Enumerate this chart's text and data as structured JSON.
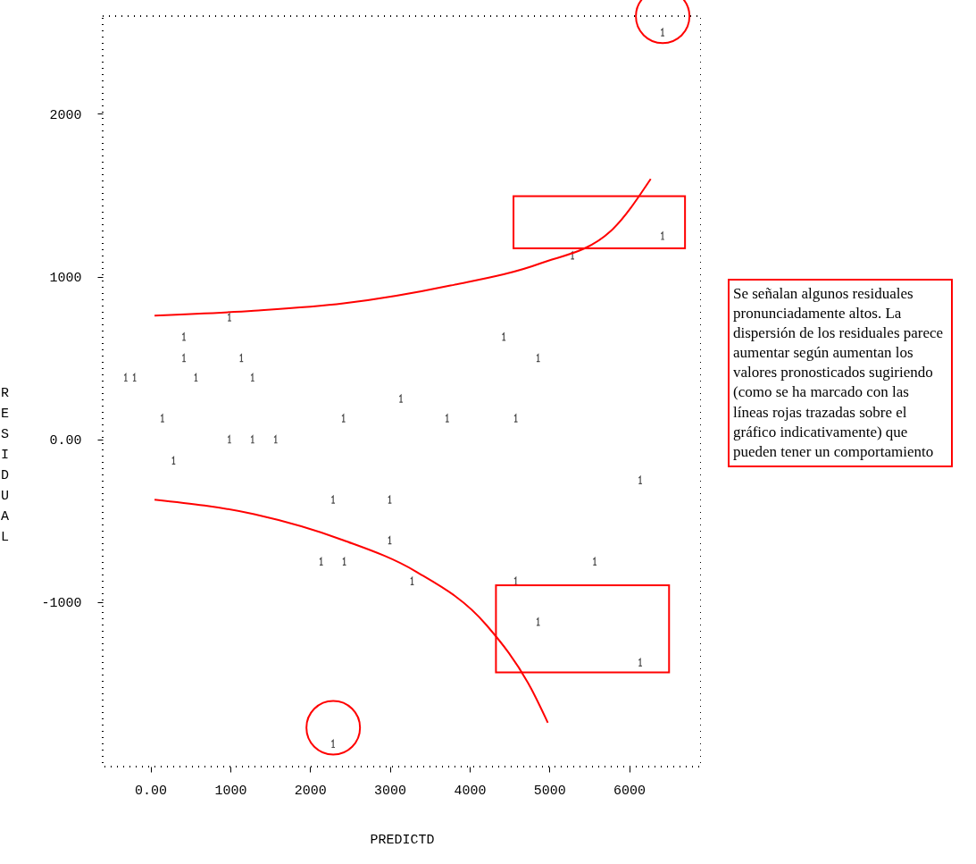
{
  "chart_data": {
    "type": "scatter",
    "xlabel": "PREDICTD",
    "ylabel": "RESIDUAL",
    "annotations": [
      "Se señalan algunos residuales pronunciadamente altos. La dispersión de los residuales parece aumentar según aumentan los valores pronosticados sugiriendo (como se ha marcado con las líneas rojas trazadas sobre el gráfico indicativamente) que pueden tener un comportamiento"
    ],
    "xlim": [
      -600,
      6900
    ],
    "ylim": [
      -2010,
      2600
    ],
    "xticks": [
      {
        "value": 0,
        "label": "0.00"
      },
      1000,
      2000,
      3000,
      4000,
      5000,
      6000
    ],
    "yticks": [
      -1000,
      {
        "value": 0,
        "label": "0.00"
      },
      1000,
      2000
    ],
    "grid": false,
    "series": [
      {
        "color": "#000000",
        "x": [
          6420,
          6420,
          5290,
          990,
          420,
          4430,
          420,
          1140,
          4860,
          -310,
          -200,
          570,
          1280,
          3140,
          150,
          2420,
          3720,
          4580,
          990,
          1280,
          1570,
          290,
          6140,
          2290,
          3000,
          3000,
          2140,
          2430,
          5570,
          3280,
          4580,
          4860,
          6140,
          2290
        ],
        "values": [
          2500,
          1250,
          1130,
          750,
          630,
          630,
          500,
          500,
          500,
          380,
          380,
          380,
          380,
          250,
          130,
          130,
          130,
          130,
          0,
          0,
          0,
          -130,
          -250,
          -370,
          -370,
          -620,
          -750,
          -750,
          -750,
          -870,
          -870,
          -1120,
          -1370,
          -1870
        ]
      },
      {
        "type": "line",
        "color": "#ff0000",
        "x": [
          50,
          1300,
          2420,
          3760,
          4880,
          5770,
          6270
        ],
        "values": [
          760,
          790,
          835,
          945,
          1080,
          1280,
          1600
        ]
      },
      {
        "type": "line",
        "color": "#ff0000",
        "x": [
          50,
          1300,
          2420,
          3320,
          4210,
          4770,
          4980
        ],
        "values": [
          -370,
          -460,
          -620,
          -810,
          -1140,
          -1530,
          -1740
        ]
      }
    ]
  }
}
